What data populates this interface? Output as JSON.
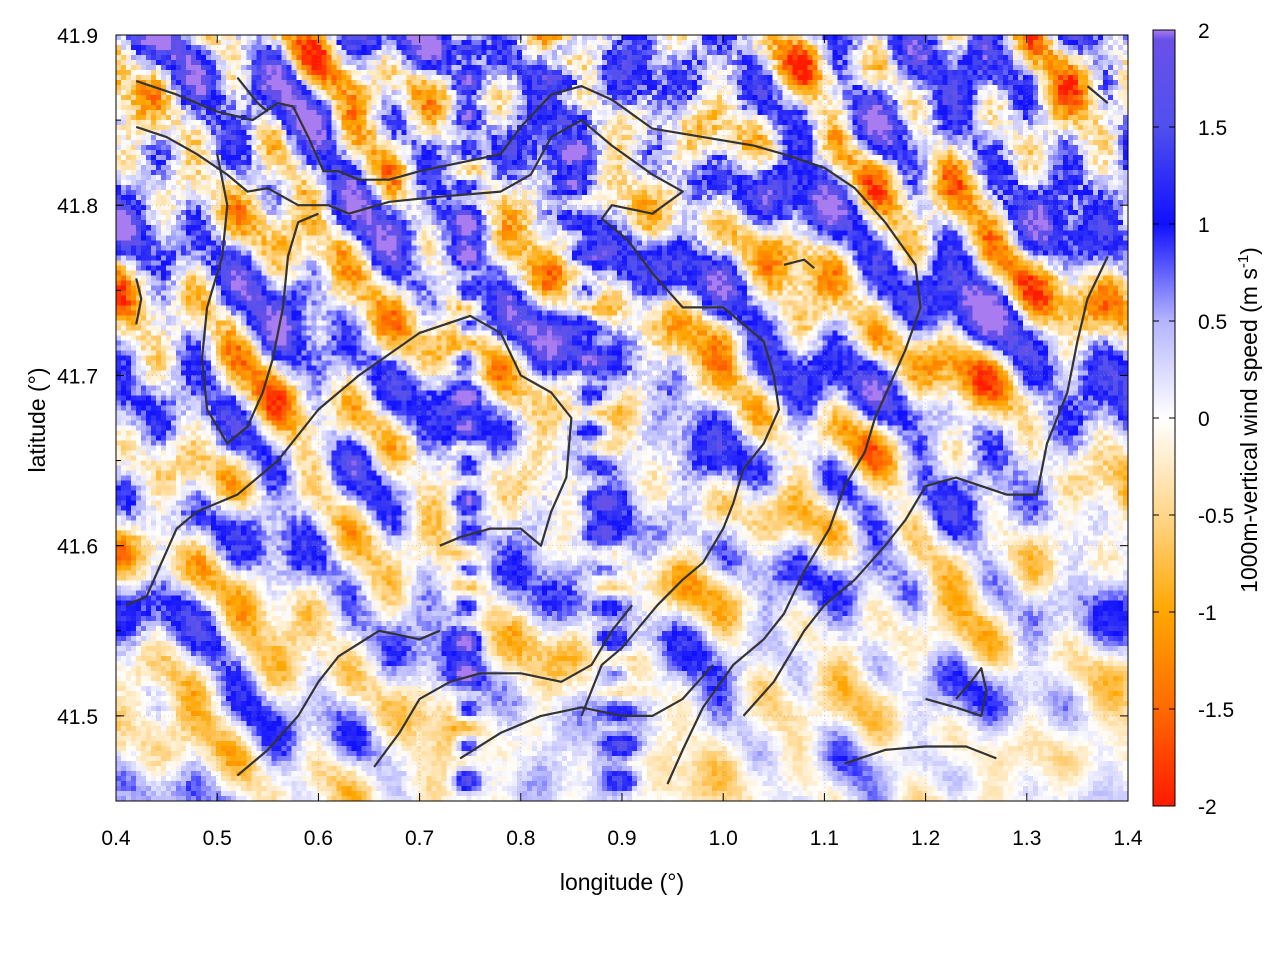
{
  "chart_data": {
    "type": "heatmap",
    "xlabel": "longitude (°)",
    "ylabel": "latitude (°)",
    "colorbar_label": {
      "main": "1000m-vertical wind speed (m s",
      "sup": "-1",
      "close": ")"
    },
    "xlim": [
      0.4,
      1.4
    ],
    "ylim": [
      41.45,
      41.9
    ],
    "x_ticks": [
      0.4,
      0.5,
      0.6,
      0.7,
      0.8,
      0.9,
      1.0,
      1.1,
      1.2,
      1.3,
      1.4
    ],
    "x_tick_labels": [
      "0.4",
      "0.5",
      "0.6",
      "0.7",
      "0.8",
      "0.9",
      "1.0",
      "1.1",
      "1.2",
      "1.3",
      "1.4"
    ],
    "y_ticks": [
      41.5,
      41.6,
      41.7,
      41.8,
      41.9
    ],
    "y_tick_labels": [
      "41.5",
      "41.6",
      "41.7",
      "41.8",
      "41.9"
    ],
    "cbar_range": [
      -2,
      2
    ],
    "cbar_ticks": [
      2,
      1.5,
      1,
      0.5,
      0,
      -0.5,
      -1,
      -1.5,
      -2
    ],
    "cbar_tick_labels": [
      "2",
      "1.5",
      "1",
      "0.5",
      "0",
      "-0.5",
      "-1",
      "-1.5",
      "-2"
    ],
    "colorscale": [
      {
        "value": -2.0,
        "color": "#ff1a00"
      },
      {
        "value": -1.5,
        "color": "#ff6a00"
      },
      {
        "value": -1.0,
        "color": "#ffa600"
      },
      {
        "value": -0.5,
        "color": "#ffd68a"
      },
      {
        "value": 0.0,
        "color": "#ffffff"
      },
      {
        "value": 0.5,
        "color": "#b4b4ff"
      },
      {
        "value": 1.0,
        "color": "#1010ff"
      },
      {
        "value": 1.5,
        "color": "#5050ee"
      },
      {
        "value": 1.95,
        "color": "#6a50e8"
      },
      {
        "value": 2.0,
        "color": "#a87cf0"
      }
    ],
    "grid": true,
    "field_description": "Noisy field of small streaks; stronger updrafts (purple/blue) concentrated in the north (41.75-41.9) and along ridges near lon 0.75 and 0.85-0.9; downdrafts (red/orange) interleaved; weaker, paler values in the south-east.",
    "contour_color": "#333333",
    "contours": [
      [
        [
          0.42,
          41.873
        ],
        [
          0.46,
          41.865
        ],
        [
          0.5,
          41.855
        ],
        [
          0.535,
          41.85
        ],
        [
          0.56,
          41.86
        ],
        [
          0.575,
          41.858
        ]
      ],
      [
        [
          0.42,
          41.846
        ],
        [
          0.45,
          41.84
        ],
        [
          0.48,
          41.83
        ],
        [
          0.51,
          41.818
        ],
        [
          0.53,
          41.808
        ],
        [
          0.55,
          41.81
        ],
        [
          0.58,
          41.8
        ],
        [
          0.61,
          41.8
        ],
        [
          0.63,
          41.795
        ],
        [
          0.67,
          41.802
        ],
        [
          0.72,
          41.805
        ],
        [
          0.78,
          41.808
        ],
        [
          0.81,
          41.818
        ],
        [
          0.83,
          41.84
        ],
        [
          0.86,
          41.85
        ],
        [
          0.89,
          41.835
        ],
        [
          0.93,
          41.818
        ],
        [
          0.96,
          41.808
        ],
        [
          0.93,
          41.795
        ],
        [
          0.89,
          41.8
        ],
        [
          0.88,
          41.792
        ],
        [
          0.905,
          41.78
        ],
        [
          0.93,
          41.76
        ],
        [
          0.96,
          41.74
        ],
        [
          1.0,
          41.74
        ],
        [
          1.04,
          41.72
        ],
        [
          1.05,
          41.7
        ],
        [
          1.055,
          41.68
        ],
        [
          1.04,
          41.66
        ],
        [
          1.02,
          41.645
        ],
        [
          1.01,
          41.625
        ],
        [
          1.0,
          41.61
        ],
        [
          0.98,
          41.59
        ],
        [
          0.96,
          41.58
        ],
        [
          0.935,
          41.565
        ],
        [
          0.9,
          41.54
        ],
        [
          0.88,
          41.53
        ],
        [
          0.86,
          41.5
        ]
      ],
      [
        [
          0.575,
          41.858
        ],
        [
          0.59,
          41.84
        ],
        [
          0.605,
          41.82
        ],
        [
          0.62,
          41.82
        ],
        [
          0.64,
          41.815
        ],
        [
          0.67,
          41.815
        ],
        [
          0.7,
          41.82
        ],
        [
          0.74,
          41.825
        ],
        [
          0.78,
          41.83
        ],
        [
          0.8,
          41.846
        ],
        [
          0.83,
          41.865
        ],
        [
          0.86,
          41.87
        ],
        [
          0.89,
          41.862
        ],
        [
          0.93,
          41.845
        ],
        [
          0.98,
          41.84
        ],
        [
          1.03,
          41.835
        ],
        [
          1.06,
          41.83
        ],
        [
          1.1,
          41.822
        ],
        [
          1.13,
          41.81
        ],
        [
          1.16,
          41.79
        ],
        [
          1.19,
          41.765
        ],
        [
          1.195,
          41.74
        ],
        [
          1.18,
          41.715
        ],
        [
          1.165,
          41.695
        ],
        [
          1.15,
          41.675
        ],
        [
          1.14,
          41.655
        ],
        [
          1.12,
          41.635
        ],
        [
          1.105,
          41.61
        ],
        [
          1.08,
          41.585
        ],
        [
          1.06,
          41.56
        ],
        [
          1.04,
          41.545
        ],
        [
          1.01,
          41.53
        ],
        [
          0.98,
          41.505
        ],
        [
          0.96,
          41.48
        ],
        [
          0.945,
          41.46
        ]
      ],
      [
        [
          0.52,
          41.875
        ],
        [
          0.54,
          41.86
        ],
        [
          0.55,
          41.855
        ]
      ],
      [
        [
          0.42,
          41.757
        ],
        [
          0.425,
          41.745
        ],
        [
          0.42,
          41.73
        ]
      ],
      [
        [
          0.5,
          41.83
        ],
        [
          0.51,
          41.8
        ],
        [
          0.505,
          41.77
        ],
        [
          0.49,
          41.74
        ],
        [
          0.485,
          41.71
        ],
        [
          0.49,
          41.68
        ],
        [
          0.51,
          41.66
        ],
        [
          0.53,
          41.67
        ],
        [
          0.545,
          41.69
        ],
        [
          0.555,
          41.71
        ],
        [
          0.565,
          41.74
        ],
        [
          0.57,
          41.77
        ],
        [
          0.58,
          41.79
        ],
        [
          0.6,
          41.795
        ]
      ],
      [
        [
          0.41,
          41.565
        ],
        [
          0.43,
          41.57
        ],
        [
          0.445,
          41.59
        ],
        [
          0.46,
          41.61
        ],
        [
          0.48,
          41.62
        ],
        [
          0.52,
          41.63
        ],
        [
          0.56,
          41.65
        ],
        [
          0.6,
          41.68
        ],
        [
          0.64,
          41.7
        ],
        [
          0.7,
          41.725
        ],
        [
          0.75,
          41.735
        ],
        [
          0.78,
          41.725
        ],
        [
          0.8,
          41.7
        ],
        [
          0.83,
          41.69
        ],
        [
          0.85,
          41.675
        ],
        [
          0.845,
          41.64
        ],
        [
          0.83,
          41.62
        ],
        [
          0.82,
          41.6
        ],
        [
          0.8,
          41.61
        ],
        [
          0.77,
          41.61
        ],
        [
          0.74,
          41.605
        ],
        [
          0.72,
          41.6
        ]
      ],
      [
        [
          0.52,
          41.465
        ],
        [
          0.55,
          41.48
        ],
        [
          0.58,
          41.5
        ],
        [
          0.6,
          41.52
        ],
        [
          0.62,
          41.535
        ],
        [
          0.66,
          41.55
        ],
        [
          0.7,
          41.545
        ],
        [
          0.72,
          41.55
        ]
      ],
      [
        [
          0.655,
          41.47
        ],
        [
          0.68,
          41.49
        ],
        [
          0.7,
          41.51
        ],
        [
          0.73,
          41.52
        ],
        [
          0.76,
          41.525
        ],
        [
          0.8,
          41.525
        ],
        [
          0.84,
          41.52
        ],
        [
          0.87,
          41.53
        ],
        [
          0.89,
          41.55
        ],
        [
          0.91,
          41.565
        ]
      ],
      [
        [
          0.74,
          41.475
        ],
        [
          0.78,
          41.49
        ],
        [
          0.82,
          41.5
        ],
        [
          0.86,
          41.505
        ],
        [
          0.9,
          41.5
        ],
        [
          0.93,
          41.5
        ],
        [
          0.96,
          41.51
        ],
        [
          0.99,
          41.53
        ]
      ],
      [
        [
          1.02,
          41.5
        ],
        [
          1.05,
          41.52
        ],
        [
          1.08,
          41.55
        ],
        [
          1.1,
          41.565
        ],
        [
          1.13,
          41.58
        ],
        [
          1.16,
          41.6
        ],
        [
          1.18,
          41.615
        ],
        [
          1.2,
          41.635
        ],
        [
          1.23,
          41.64
        ],
        [
          1.28,
          41.63
        ],
        [
          1.31,
          41.63
        ],
        [
          1.32,
          41.66
        ],
        [
          1.34,
          41.69
        ],
        [
          1.35,
          41.72
        ],
        [
          1.36,
          41.745
        ],
        [
          1.38,
          41.77
        ]
      ],
      [
        [
          1.36,
          41.87
        ],
        [
          1.38,
          41.86
        ]
      ],
      [
        [
          1.12,
          41.472
        ],
        [
          1.16,
          41.48
        ],
        [
          1.2,
          41.482
        ],
        [
          1.24,
          41.482
        ],
        [
          1.27,
          41.475
        ]
      ],
      [
        [
          1.23,
          41.51
        ],
        [
          1.245,
          41.52
        ],
        [
          1.255,
          41.528
        ],
        [
          1.26,
          41.515
        ],
        [
          1.255,
          41.5
        ],
        [
          1.23,
          41.505
        ],
        [
          1.2,
          41.51
        ]
      ],
      [
        [
          1.06,
          41.765
        ],
        [
          1.08,
          41.768
        ],
        [
          1.09,
          41.763
        ]
      ]
    ]
  }
}
